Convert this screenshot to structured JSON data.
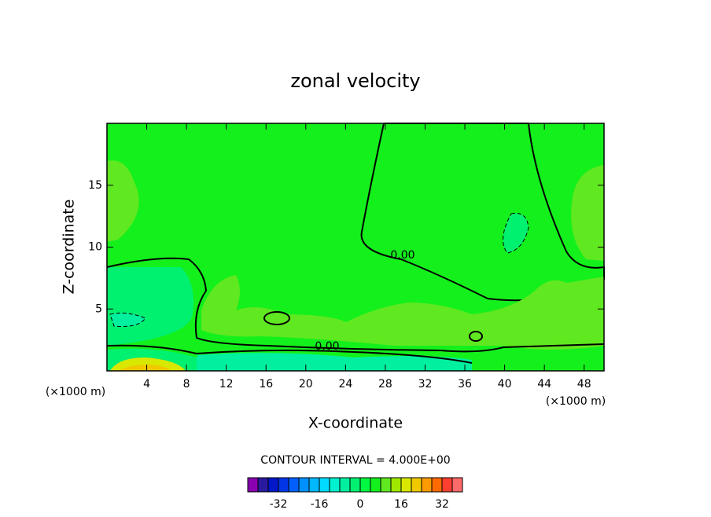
{
  "chart_data": {
    "type": "contour",
    "title": "zonal velocity",
    "x_label": "X-coordinate",
    "y_label": "Z-coordinate",
    "x_unit_left": "(×1000 m)",
    "x_unit_right": "(×1000 m)",
    "contour_labels": [
      "0.00",
      "0.00"
    ],
    "contour_info": "CONTOUR INTERVAL = 4.000E+00",
    "xlim": [
      0,
      50
    ],
    "xticks": [
      4,
      8,
      12,
      16,
      20,
      24,
      28,
      32,
      36,
      40,
      44,
      48
    ],
    "ylim": [
      0,
      20
    ],
    "yticks": [
      5,
      10,
      15
    ],
    "colorbar": {
      "lim": [
        -44,
        40
      ],
      "ticks": [
        -32,
        -16,
        0,
        16,
        32
      ],
      "colors": [
        "#8a00b0",
        "#2a1aa0",
        "#0018c8",
        "#0036e6",
        "#0060ff",
        "#0090ff",
        "#00b8ff",
        "#00dcff",
        "#00f0d0",
        "#00f0a0",
        "#00f070",
        "#00f840",
        "#14f01c",
        "#60e820",
        "#a0e800",
        "#d8e800",
        "#f0c800",
        "#ff9a00",
        "#ff6a00",
        "#ff4030",
        "#ff6a6a"
      ]
    }
  }
}
